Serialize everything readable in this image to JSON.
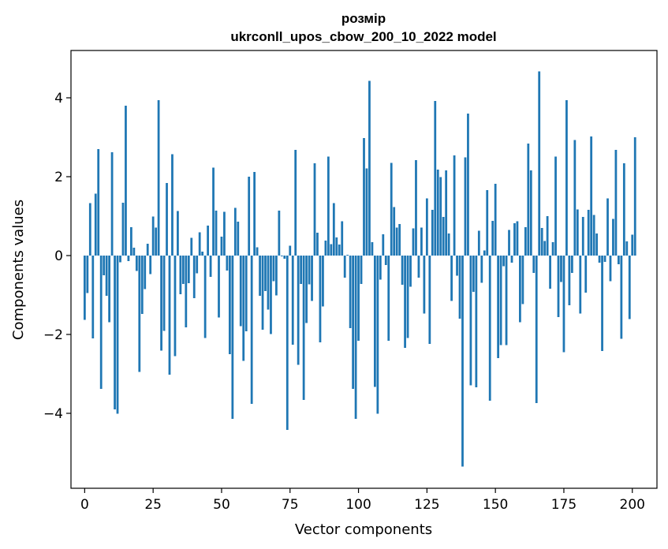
{
  "chart_data": {
    "type": "bar",
    "title_line1": "розмір",
    "title_line2": "ukrconll_upos_cbow_200_10_2022 model",
    "xlabel": "Vector components",
    "ylabel": "Components values",
    "xlim": [
      -5,
      209
    ],
    "ylim": [
      -5.9,
      5.2
    ],
    "xticks": [
      0,
      25,
      50,
      75,
      100,
      125,
      150,
      175,
      200
    ],
    "yticks": [
      -4,
      -2,
      0,
      2,
      4
    ],
    "grid": false,
    "legend": "none",
    "bar_color": "#1f77b4",
    "values": [
      -1.63,
      -0.95,
      1.33,
      -2.1,
      1.57,
      2.7,
      -3.38,
      -0.5,
      -1.02,
      -1.69,
      2.62,
      -3.9,
      -4.01,
      -0.17,
      1.34,
      3.8,
      -0.14,
      0.72,
      0.2,
      -0.39,
      -2.95,
      -1.48,
      -0.85,
      0.3,
      -0.47,
      0.99,
      0.71,
      3.94,
      -2.41,
      -1.91,
      1.84,
      -3.02,
      2.57,
      -2.55,
      1.13,
      -0.98,
      -0.72,
      -1.82,
      -0.7,
      0.45,
      -1.08,
      -0.45,
      0.59,
      0.1,
      -2.09,
      0.76,
      -0.54,
      2.23,
      1.14,
      -1.57,
      0.48,
      1.11,
      -0.38,
      -2.5,
      -4.14,
      1.21,
      0.86,
      -1.79,
      -2.67,
      -1.92,
      2.0,
      -3.76,
      2.12,
      0.21,
      -1.02,
      -1.88,
      -0.9,
      -1.37,
      -1.99,
      -0.65,
      -1.01,
      1.14,
      -0.02,
      -0.08,
      -4.42,
      0.25,
      -2.26,
      2.68,
      -2.77,
      -0.72,
      -3.66,
      -1.71,
      -0.73,
      -1.15,
      2.34,
      0.58,
      -2.2,
      -1.29,
      0.38,
      2.51,
      0.29,
      1.33,
      0.46,
      0.28,
      0.87,
      -0.56,
      0.02,
      -1.84,
      -3.38,
      -4.14,
      -2.16,
      -0.72,
      2.98,
      2.21,
      4.43,
      0.34,
      -3.33,
      -4.01,
      -0.61,
      0.54,
      -0.24,
      -2.16,
      2.35,
      1.23,
      0.71,
      0.8,
      -0.74,
      -2.34,
      -2.09,
      -0.79,
      0.69,
      2.42,
      -0.56,
      0.71,
      -1.47,
      1.45,
      -2.24,
      1.16,
      3.92,
      2.18,
      1.99,
      0.98,
      2.16,
      0.56,
      -1.15,
      2.54,
      -0.51,
      -1.6,
      -5.35,
      2.49,
      3.6,
      -3.29,
      -0.92,
      -3.34,
      0.63,
      -0.69,
      0.13,
      1.66,
      -3.68,
      0.88,
      1.82,
      -2.6,
      -2.27,
      -0.27,
      -2.27,
      0.65,
      -0.18,
      0.82,
      0.87,
      -1.69,
      -1.23,
      0.72,
      2.84,
      2.16,
      -0.44,
      -3.74,
      4.67,
      0.7,
      0.37,
      1.0,
      -0.84,
      0.34,
      2.51,
      -1.56,
      -0.67,
      -2.45,
      3.94,
      -1.26,
      -0.44,
      2.93,
      1.17,
      -1.47,
      0.98,
      -0.94,
      1.16,
      3.02,
      1.03,
      0.56,
      -0.18,
      -2.42,
      -0.16,
      1.45,
      -0.65,
      0.93,
      2.68,
      -0.22,
      -2.11,
      2.34,
      0.36,
      -1.61,
      0.53,
      3.0
    ]
  }
}
